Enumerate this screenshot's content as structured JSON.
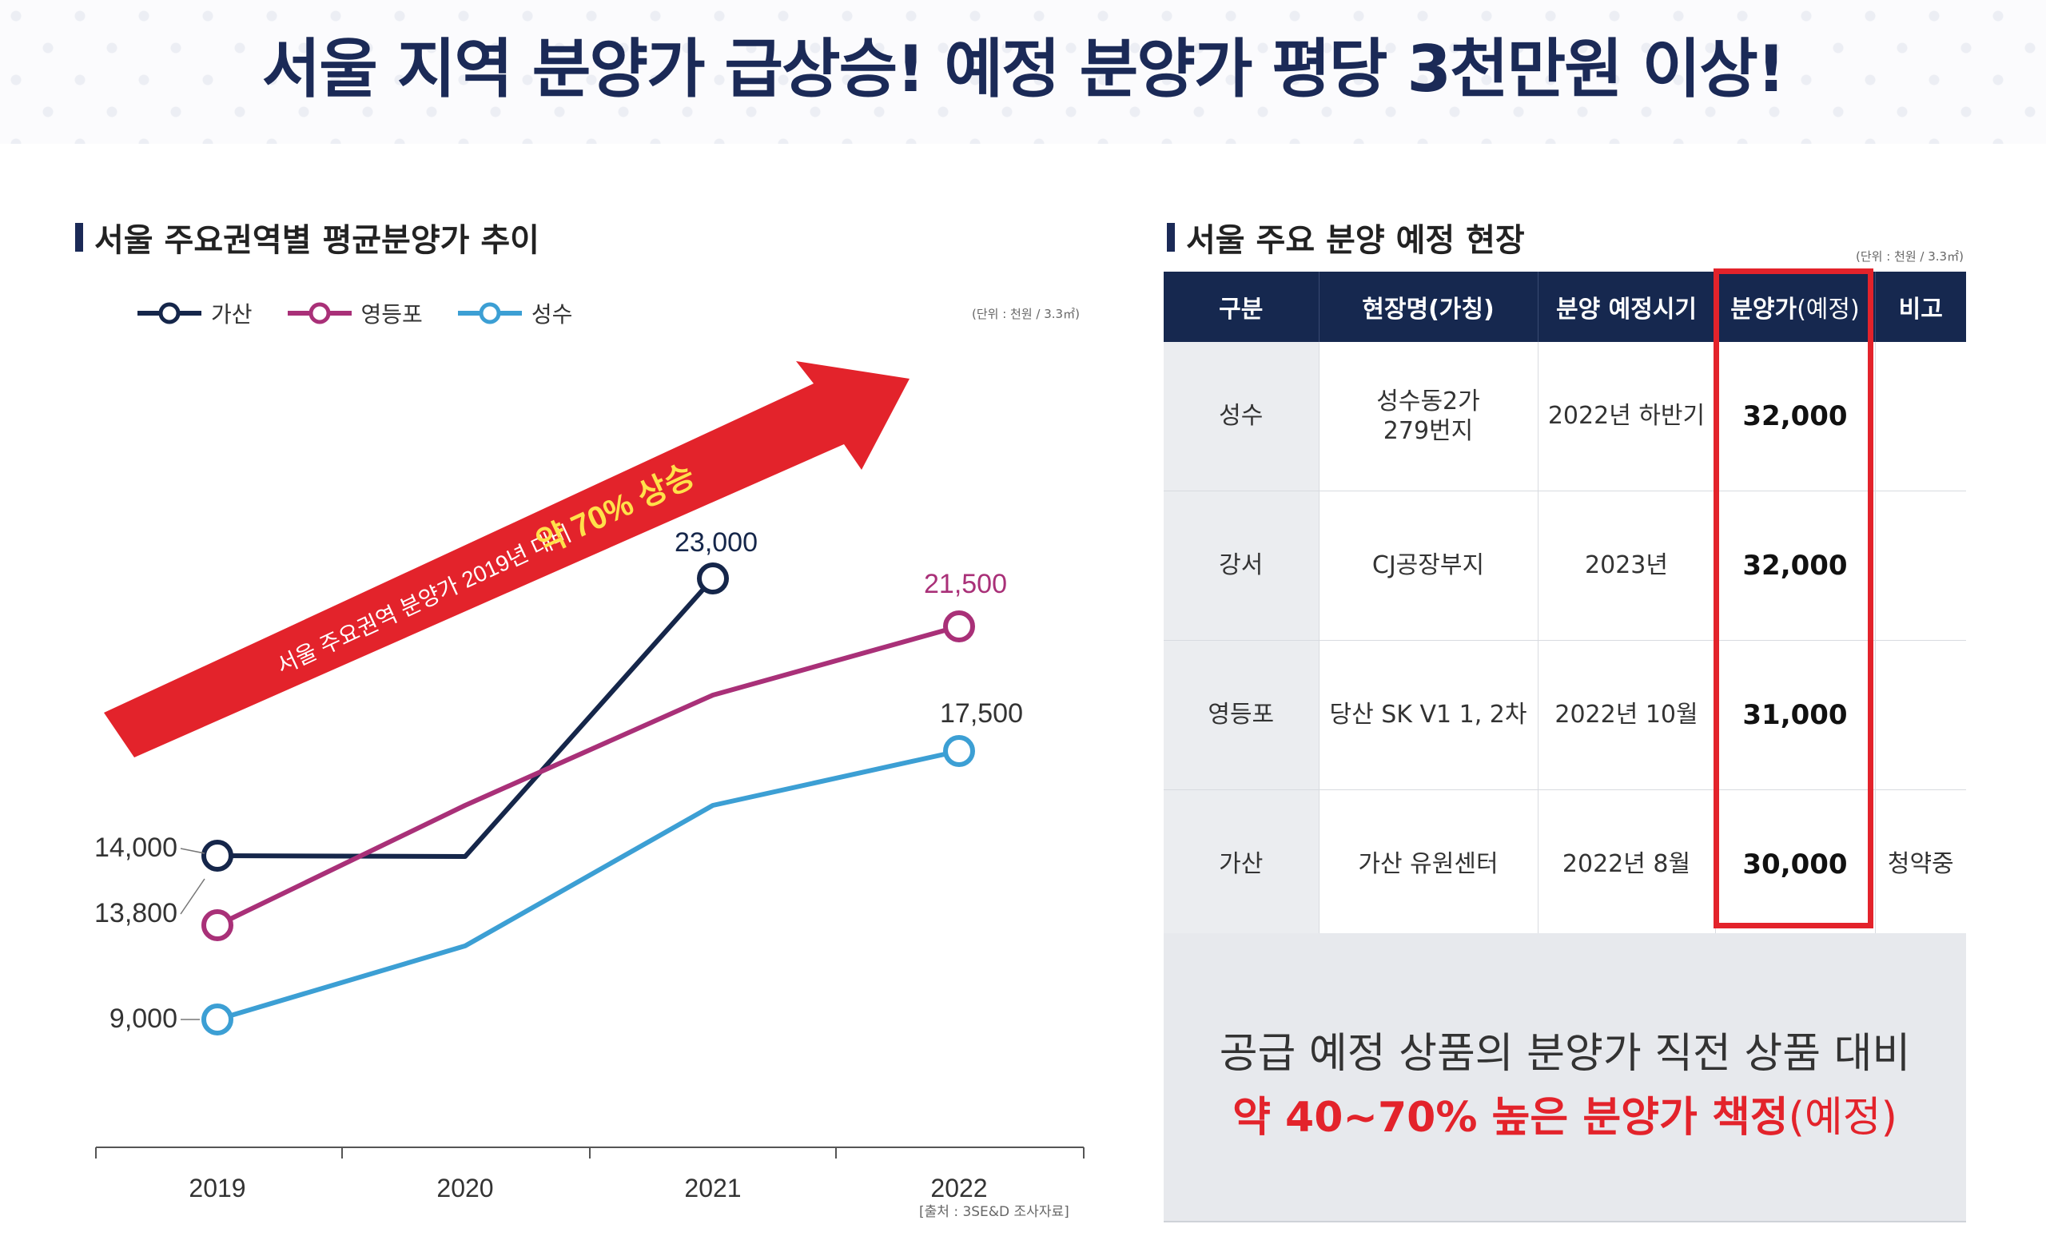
{
  "header": {
    "title": "서울 지역 분양가 급상승! 예정 분양가 평당 3천만원 이상!"
  },
  "left_section": {
    "title": "서울 주요권역별 평균분양가 추이",
    "unit": "(단위 : 천원 / 3.3㎡)",
    "arrow_text_small": "서울 주요권역 분양가 2019년 대비",
    "arrow_text_big": "약 70% 상승",
    "source": "[출처 : 3SE&D 조사자료]"
  },
  "right_section": {
    "title": "서울 주요 분양 예정 현장",
    "unit": "(단위 : 천원 / 3.3㎡)",
    "table": {
      "headers": [
        "구분",
        "현장명(가칭)",
        "분양 예정시기",
        "분양가",
        "(예정)",
        "비고"
      ],
      "rows": [
        {
          "region": "성수",
          "site_line1": "성수동2가",
          "site_line2": "279번지",
          "period": "2022년 하반기",
          "price": "32,000",
          "note": ""
        },
        {
          "region": "강서",
          "site_line1": "CJ공장부지",
          "site_line2": "",
          "period": "2023년",
          "price": "32,000",
          "note": ""
        },
        {
          "region": "영등포",
          "site_line1": "당산 SK V1 1, 2차",
          "site_line2": "",
          "period": "2022년 10월",
          "price": "31,000",
          "note": ""
        },
        {
          "region": "가산",
          "site_line1": "가산 유원센터",
          "site_line2": "",
          "period": "2022년 8월",
          "price": "30,000",
          "note": "청약중"
        }
      ]
    },
    "summary_line1": "공급 예정 상품의 분양가 직전 상품 대비",
    "summary_line2_main": "약 40~70% 높은 분양가 책정",
    "summary_line2_sub": "(예정)"
  },
  "colors": {
    "navy": "#1b2a57",
    "gasan": "#15264a",
    "yeongdeungpo": "#a93078",
    "seongsu": "#3c9fd4",
    "arrow_red": "#e3232b",
    "highlight_yellow": "#ffe14a"
  },
  "chart_data": {
    "type": "line",
    "categories": [
      "2019",
      "2020",
      "2021",
      "2022"
    ],
    "series": [
      {
        "name": "가산",
        "color": "#15264a",
        "values": [
          14000,
          14000,
          23000,
          null
        ]
      },
      {
        "name": "영등포",
        "color": "#a93078",
        "values": [
          13800,
          15500,
          19000,
          21500
        ]
      },
      {
        "name": "성수",
        "color": "#3c9fd4",
        "values": [
          9000,
          12300,
          15500,
          17500
        ]
      }
    ],
    "data_labels": [
      {
        "series": "가산",
        "category": "2019",
        "text": "14,000"
      },
      {
        "series": "영등포",
        "category": "2019",
        "text": "13,800"
      },
      {
        "series": "성수",
        "category": "2019",
        "text": "9,000"
      },
      {
        "series": "가산",
        "category": "2021",
        "text": "23,000"
      },
      {
        "series": "영등포",
        "category": "2022",
        "text": "21,500"
      },
      {
        "series": "성수",
        "category": "2022",
        "text": "17,500"
      }
    ],
    "title": "서울 주요권역별 평균분양가 추이",
    "xlabel": "",
    "ylabel": "",
    "legend": "top-left",
    "grid": false
  }
}
